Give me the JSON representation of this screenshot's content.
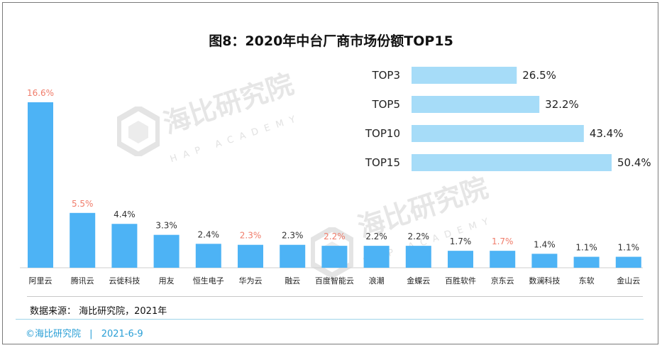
{
  "title": "图8：2020年中台厂商市场份额TOP15",
  "source": "数据来源： 海比研究院，2021年",
  "footer": {
    "brand": "©海比研究院",
    "separator": "|",
    "date": "2021-6-9"
  },
  "watermark": {
    "name": "海比研究院",
    "sub": "HAP ACADEMY"
  },
  "colors": {
    "bar": "#4db3f5",
    "top_bar": "#a6dcf8",
    "highlight_label": "#f07c6a",
    "label": "#333333"
  },
  "chart_data": [
    {
      "type": "bar",
      "categories": [
        "阿里云",
        "腾讯云",
        "云徙科技",
        "用友",
        "恒生电子",
        "华为云",
        "融云",
        "百度智能云",
        "浪潮",
        "金蝶云",
        "百胜软件",
        "京东云",
        "数澜科技",
        "东软",
        "金山云"
      ],
      "values": [
        16.6,
        5.5,
        4.4,
        3.3,
        2.4,
        2.3,
        2.3,
        2.2,
        2.2,
        2.2,
        1.7,
        1.7,
        1.4,
        1.1,
        1.1
      ],
      "value_labels": [
        "16.6%",
        "5.5%",
        "4.4%",
        "3.3%",
        "2.4%",
        "2.3%",
        "2.3%",
        "2.2%",
        "2.2%",
        "2.2%",
        "1.7%",
        "1.7%",
        "1.4%",
        "1.1%",
        "1.1%"
      ],
      "highlighted": [
        true,
        true,
        false,
        false,
        false,
        true,
        false,
        true,
        false,
        false,
        false,
        true,
        false,
        false,
        false
      ],
      "unit": "%",
      "ylim": [
        0,
        17
      ],
      "grid": false
    },
    {
      "type": "bar",
      "orientation": "horizontal",
      "categories": [
        "TOP3",
        "TOP5",
        "TOP10",
        "TOP15"
      ],
      "values": [
        26.5,
        32.2,
        43.4,
        50.4
      ],
      "value_labels": [
        "26.5%",
        "32.2%",
        "43.4%",
        "50.4%"
      ],
      "unit": "%",
      "xlim": [
        0,
        50.4
      ],
      "grid": false
    }
  ]
}
